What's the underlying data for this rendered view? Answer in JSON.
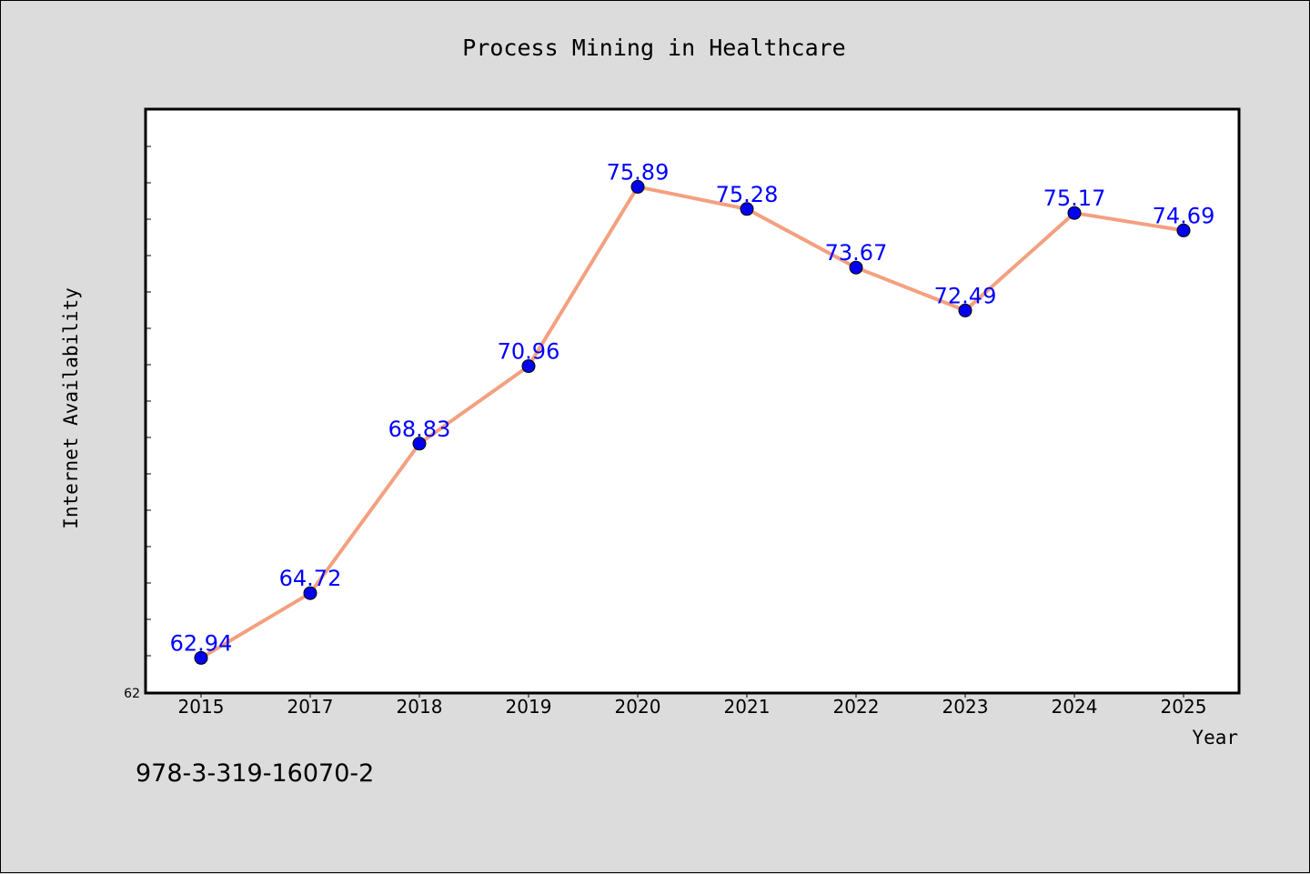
{
  "chart_data": {
    "type": "line",
    "title": "Process Mining in Healthcare",
    "xlabel": "Year",
    "ylabel": "Internet Availability",
    "categories": [
      "2015",
      "2017",
      "2018",
      "2019",
      "2020",
      "2021",
      "2022",
      "2023",
      "2024",
      "2025"
    ],
    "series": [
      {
        "values": [
          62.94,
          64.72,
          68.83,
          70.96,
          75.89,
          75.28,
          73.67,
          72.49,
          75.17,
          74.69
        ],
        "line_color": "#f4a080",
        "marker_color": "#0000ee"
      }
    ],
    "y_tick_labels": [
      "62"
    ],
    "ylim": [
      62,
      78
    ],
    "grid": false,
    "legend": "none",
    "data_label_color": "#0000ff"
  },
  "footnote": "978-3-319-16070-2"
}
